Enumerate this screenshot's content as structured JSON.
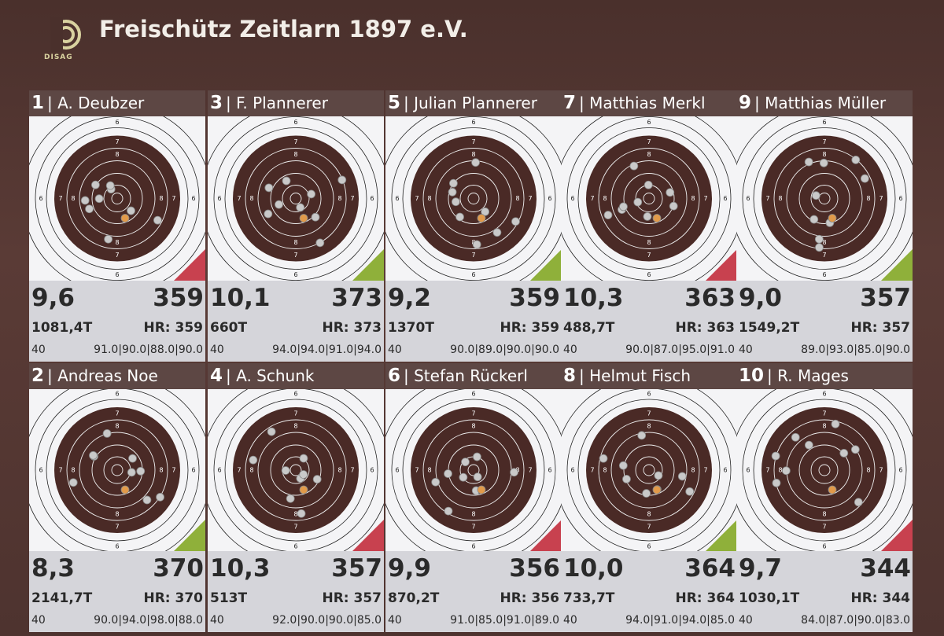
{
  "header": {
    "logo": "DISAG",
    "title": "Freischütz Zeitlarn 1897 e.V."
  },
  "target": {
    "ring_labels": [
      "6",
      "7",
      "8"
    ]
  },
  "shooters": [
    {
      "rank": "1",
      "name": "| A. Deubzer",
      "last": "9,6",
      "total": "359",
      "teiler": "1081,4T",
      "hr": "HR: 359",
      "shots": "40",
      "series": "91.0|90.0|88.0|90.0",
      "corner": "#c8414f"
    },
    {
      "rank": "3",
      "name": "| F. Plannerer",
      "last": "10,1",
      "total": "373",
      "teiler": "660T",
      "hr": "HR: 373",
      "shots": "40",
      "series": "94.0|94.0|91.0|94.0",
      "corner": "#8fb03a"
    },
    {
      "rank": "5",
      "name": "| Julian Plannerer",
      "last": "9,2",
      "total": "359",
      "teiler": "1370T",
      "hr": "HR: 359",
      "shots": "40",
      "series": "90.0|89.0|90.0|90.0",
      "corner": "#8fb03a"
    },
    {
      "rank": "7",
      "name": "| Matthias Merkl",
      "last": "10,3",
      "total": "363",
      "teiler": "488,7T",
      "hr": "HR: 363",
      "shots": "40",
      "series": "90.0|87.0|95.0|91.0",
      "corner": "#c8414f"
    },
    {
      "rank": "9",
      "name": "| Matthias Müller",
      "last": "9,0",
      "total": "357",
      "teiler": "1549,2T",
      "hr": "HR: 357",
      "shots": "40",
      "series": "89.0|93.0|85.0|90.0",
      "corner": "#8fb03a"
    },
    {
      "rank": "2",
      "name": "| Andreas Noe",
      "last": "8,3",
      "total": "370",
      "teiler": "2141,7T",
      "hr": "HR: 370",
      "shots": "40",
      "series": "90.0|94.0|98.0|88.0",
      "corner": "#8fb03a"
    },
    {
      "rank": "4",
      "name": "| A. Schunk",
      "last": "10,3",
      "total": "357",
      "teiler": "513T",
      "hr": "HR: 357",
      "shots": "40",
      "series": "92.0|90.0|90.0|85.0",
      "corner": "#c8414f"
    },
    {
      "rank": "6",
      "name": "| Stefan Rückerl",
      "last": "9,9",
      "total": "356",
      "teiler": "870,2T",
      "hr": "HR: 356",
      "shots": "40",
      "series": "91.0|85.0|91.0|89.0",
      "corner": "#c8414f"
    },
    {
      "rank": "8",
      "name": "| Helmut Fisch",
      "last": "10,0",
      "total": "364",
      "teiler": "733,7T",
      "hr": "HR: 364",
      "shots": "40",
      "series": "94.0|91.0|94.0|85.0",
      "corner": "#8fb03a"
    },
    {
      "rank": "10",
      "name": "| R. Mages",
      "last": "9,7",
      "total": "344",
      "teiler": "1030,1T",
      "hr": "HR: 344",
      "shots": "40",
      "series": "84.0|87.0|90.0|83.0",
      "corner": "#c8414f"
    }
  ]
}
